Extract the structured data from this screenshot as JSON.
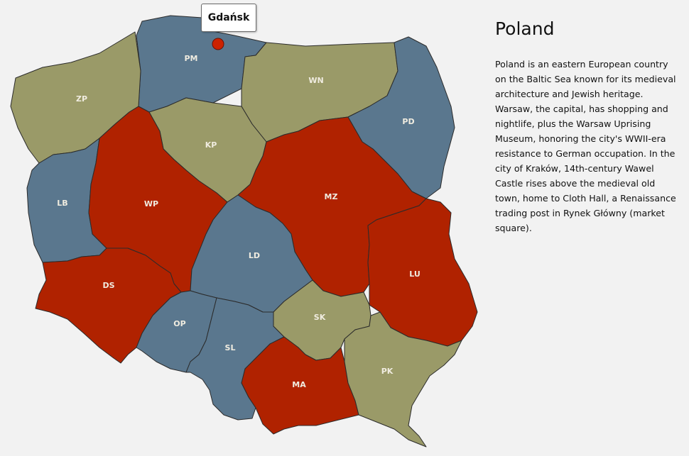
{
  "map": {
    "country": "Poland",
    "colors": {
      "red": "#b02200",
      "blue": "#5a778e",
      "olive": "#9a9a68",
      "marker": "#cc2200",
      "label": "#f0ece0"
    },
    "regions": [
      {
        "code": "PM",
        "color": "blue"
      },
      {
        "code": "ZP",
        "color": "olive"
      },
      {
        "code": "WN",
        "color": "olive"
      },
      {
        "code": "PD",
        "color": "blue"
      },
      {
        "code": "KP",
        "color": "olive"
      },
      {
        "code": "LB",
        "color": "blue"
      },
      {
        "code": "WP",
        "color": "red"
      },
      {
        "code": "MZ",
        "color": "red"
      },
      {
        "code": "LD",
        "color": "blue"
      },
      {
        "code": "DS",
        "color": "red"
      },
      {
        "code": "LU",
        "color": "red"
      },
      {
        "code": "OP",
        "color": "blue"
      },
      {
        "code": "SL",
        "color": "blue"
      },
      {
        "code": "SK",
        "color": "olive"
      },
      {
        "code": "MA",
        "color": "red"
      },
      {
        "code": "PK",
        "color": "olive"
      }
    ],
    "marker": {
      "city": "Gdańsk",
      "icon": "map-pin-dot"
    }
  },
  "info": {
    "title": "Poland",
    "description": "Poland is an eastern European country on the Baltic Sea known for its medieval architecture and Jewish heritage. Warsaw, the capital, has shopping and nightlife, plus the Warsaw Uprising Museum, honoring the city's WWII-era resistance to German occupation. In the city of Kraków, 14th-century Wawel Castle rises above the medieval old town, home to Cloth Hall, a Renaissance trading post in Rynek Główny (market square)."
  }
}
